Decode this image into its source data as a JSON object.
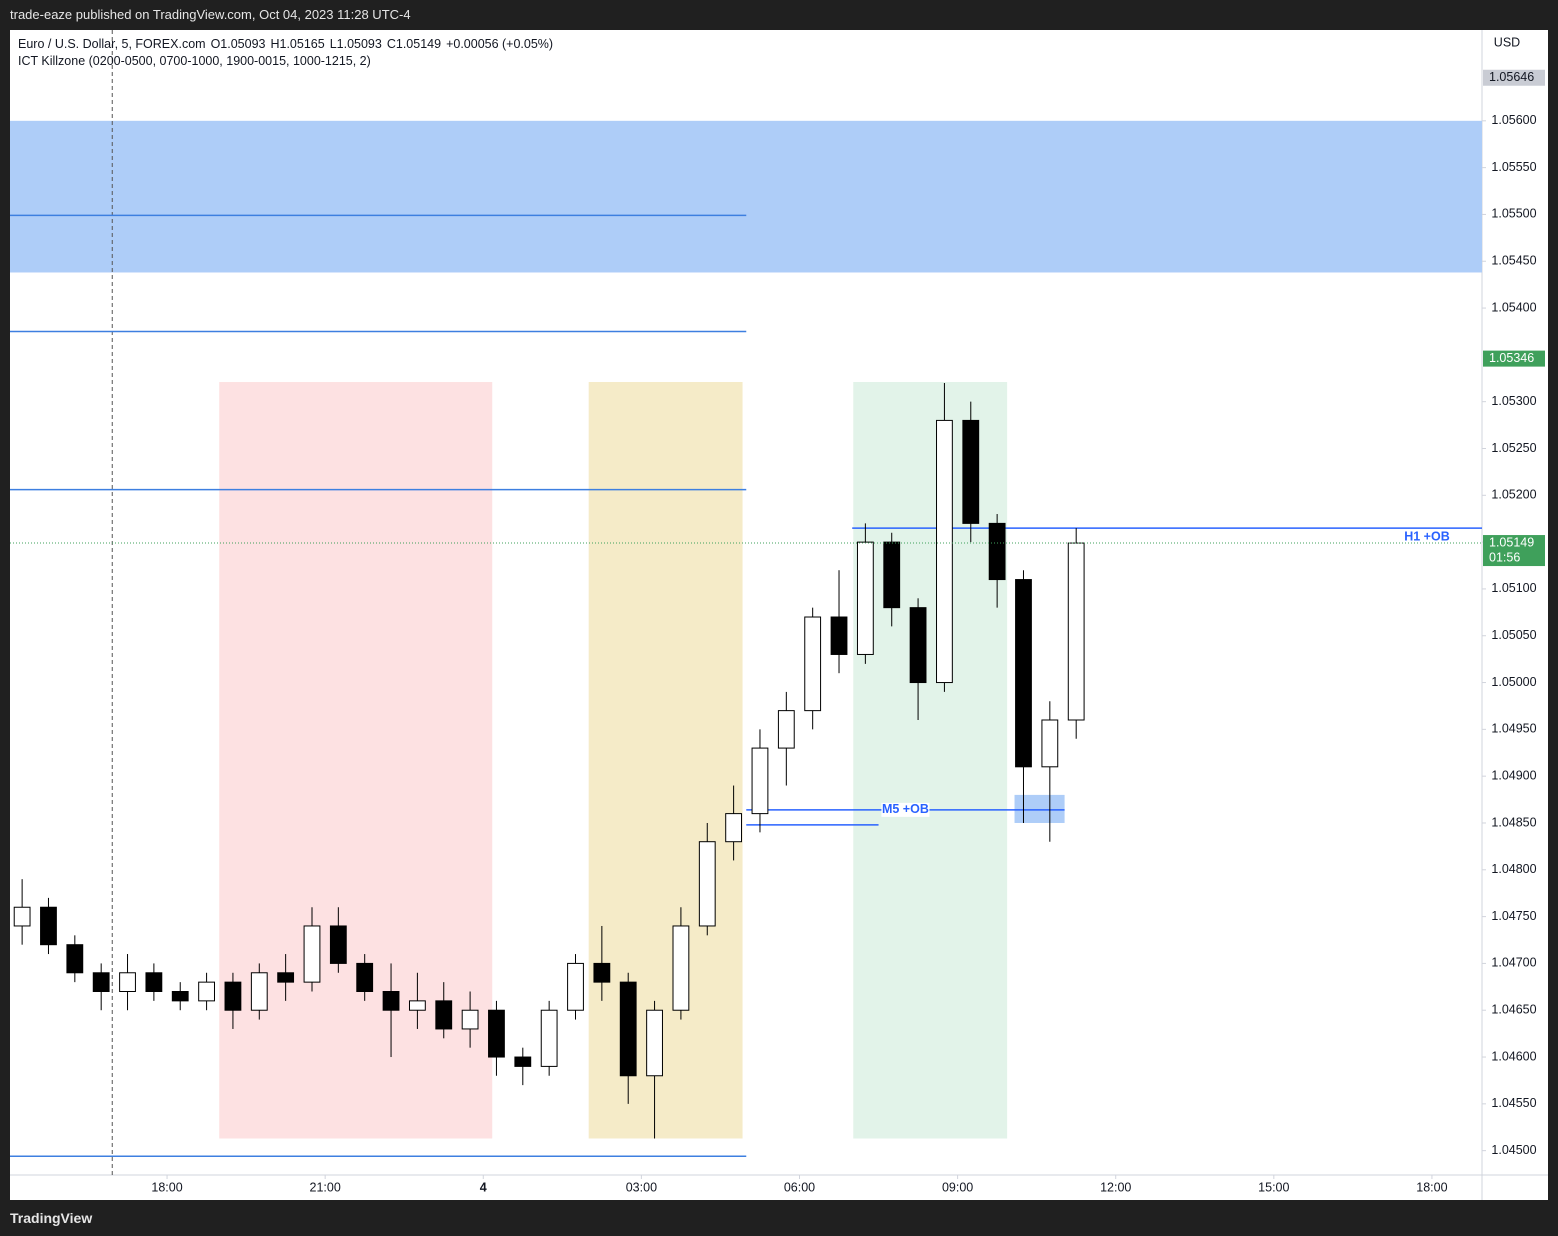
{
  "page": {
    "publisher": "trade-eaze published on TradingView.com, Oct 04, 2023 11:28 UTC-4",
    "brand": "TradingView"
  },
  "chart_data": {
    "type": "candlestick",
    "title": "Euro / U.S. Dollar, 5, FOREX.com",
    "ohlc_header": [
      "O1.05093",
      "H1.05165",
      "L1.05093",
      "C1.05149",
      "+0.00056 (+0.05%)"
    ],
    "indicator": "ICT Killzone (0200-0500, 0700-1000, 1900-0015, 1000-1215, 2)",
    "currency": "USD",
    "x": [
      15.25,
      15.75,
      16.25,
      16.75,
      17.25,
      17.75,
      18.25,
      18.75,
      19.25,
      19.75,
      20.25,
      20.75,
      21.25,
      21.75,
      22.25,
      22.75,
      23.25,
      23.75,
      24.25,
      24.75,
      25.25,
      25.75,
      26.25,
      26.75,
      27.25,
      27.75,
      28.25,
      28.75,
      29.25,
      29.75,
      30.25,
      30.75,
      31.25,
      31.75,
      32.25,
      32.75,
      33.25,
      33.75,
      34.25,
      34.75,
      35.25
    ],
    "open": [
      1.0474,
      1.0476,
      1.0472,
      1.0469,
      1.0467,
      1.0469,
      1.0467,
      1.0466,
      1.0468,
      1.0465,
      1.0469,
      1.0468,
      1.0474,
      1.047,
      1.0467,
      1.0465,
      1.0466,
      1.0463,
      1.0465,
      1.046,
      1.0459,
      1.0465,
      1.047,
      1.0468,
      1.0458,
      1.0465,
      1.0474,
      1.0483,
      1.0486,
      1.0493,
      1.0497,
      1.0507,
      1.0503,
      1.0515,
      1.0508,
      1.05,
      1.0528,
      1.0517,
      1.0511,
      1.0491,
      1.0496
    ],
    "high": [
      1.0479,
      1.0477,
      1.0473,
      1.047,
      1.0471,
      1.047,
      1.0468,
      1.0469,
      1.0469,
      1.047,
      1.0471,
      1.0476,
      1.0476,
      1.0471,
      1.047,
      1.0469,
      1.0468,
      1.0467,
      1.0466,
      1.0461,
      1.0466,
      1.0471,
      1.0474,
      1.0469,
      1.0466,
      1.0476,
      1.0485,
      1.0489,
      1.0495,
      1.0499,
      1.0508,
      1.0512,
      1.0517,
      1.0516,
      1.0509,
      1.0532,
      1.053,
      1.0518,
      1.0512,
      1.0498,
      1.05165
    ],
    "low": [
      1.0472,
      1.0471,
      1.0468,
      1.0465,
      1.0465,
      1.0466,
      1.0465,
      1.0465,
      1.0463,
      1.0464,
      1.0466,
      1.0467,
      1.0469,
      1.0466,
      1.046,
      1.0463,
      1.0462,
      1.0461,
      1.0458,
      1.0457,
      1.0458,
      1.0464,
      1.0466,
      1.0455,
      1.04513,
      1.0464,
      1.0473,
      1.0481,
      1.0484,
      1.0489,
      1.0495,
      1.0501,
      1.0502,
      1.0506,
      1.0496,
      1.0499,
      1.0515,
      1.0508,
      1.0485,
      1.0483,
      1.0494
    ],
    "close": [
      1.0476,
      1.0472,
      1.0469,
      1.0467,
      1.0469,
      1.0467,
      1.0466,
      1.0468,
      1.0465,
      1.0469,
      1.0468,
      1.0474,
      1.047,
      1.0467,
      1.0465,
      1.0466,
      1.0463,
      1.0465,
      1.046,
      1.0459,
      1.0465,
      1.047,
      1.0468,
      1.0458,
      1.0465,
      1.0474,
      1.0483,
      1.0486,
      1.0493,
      1.0497,
      1.0507,
      1.0503,
      1.0515,
      1.0508,
      1.05,
      1.0528,
      1.0517,
      1.0511,
      1.0491,
      1.0496,
      1.05149
    ],
    "up_color": "#ffffff",
    "down_color": "#000000",
    "wick_color": "#000000",
    "xlim": [
      15.02,
      42.95
    ],
    "ylim": [
      1.04474,
      1.05697
    ],
    "xticks": [
      {
        "value": 18,
        "label": "18:00"
      },
      {
        "value": 21,
        "label": "21:00"
      },
      {
        "value": 24,
        "label": "4"
      },
      {
        "value": 27,
        "label": "03:00"
      },
      {
        "value": 30,
        "label": "06:00"
      },
      {
        "value": 33,
        "label": "09:00"
      },
      {
        "value": 36,
        "label": "12:00"
      },
      {
        "value": 39,
        "label": "15:00"
      },
      {
        "value": 42,
        "label": "18:00"
      }
    ],
    "yticks": [
      {
        "value": 1.045,
        "label": "1.04500"
      },
      {
        "value": 1.0455,
        "label": "1.04550"
      },
      {
        "value": 1.046,
        "label": "1.04600"
      },
      {
        "value": 1.0465,
        "label": "1.04650"
      },
      {
        "value": 1.047,
        "label": "1.04700"
      },
      {
        "value": 1.0475,
        "label": "1.04750"
      },
      {
        "value": 1.048,
        "label": "1.04800"
      },
      {
        "value": 1.0485,
        "label": "1.04850"
      },
      {
        "value": 1.049,
        "label": "1.04900"
      },
      {
        "value": 1.0495,
        "label": "1.04950"
      },
      {
        "value": 1.05,
        "label": "1.05000"
      },
      {
        "value": 1.0505,
        "label": "1.05050"
      },
      {
        "value": 1.051,
        "label": "1.05100"
      },
      {
        "value": 1.0515,
        "label": "1.05150"
      },
      {
        "value": 1.052,
        "label": "1.05200"
      },
      {
        "value": 1.0525,
        "label": "1.05250"
      },
      {
        "value": 1.053,
        "label": "1.05300"
      },
      {
        "value": 1.054,
        "label": "1.05400"
      },
      {
        "value": 1.0545,
        "label": "1.05450"
      },
      {
        "value": 1.055,
        "label": "1.05500"
      },
      {
        "value": 1.0555,
        "label": "1.05550"
      },
      {
        "value": 1.056,
        "label": "1.05600"
      }
    ],
    "zones": [
      {
        "x": [
          15.02,
          42.95
        ],
        "y": [
          1.05438,
          1.056
        ],
        "color": "#aecdf8"
      },
      {
        "x": [
          18.99,
          24.17
        ],
        "y": [
          1.04513,
          1.05321
        ],
        "color": "#fde1e2"
      },
      {
        "x": [
          26.0,
          28.92
        ],
        "y": [
          1.04513,
          1.05321
        ],
        "color": "#f5ebc8"
      },
      {
        "x": [
          31.02,
          33.94
        ],
        "y": [
          1.04513,
          1.05321
        ],
        "color": "#e2f3e9"
      },
      {
        "x": [
          34.08,
          35.03
        ],
        "y": [
          1.0485,
          1.0488
        ],
        "color": "#aecdf8"
      }
    ],
    "levels": [
      {
        "value": 1.05499,
        "x": [
          15.02,
          28.99
        ],
        "color": "#3d7fe0"
      },
      {
        "value": 1.05375,
        "x": [
          15.02,
          28.99
        ],
        "color": "#3d7fe0"
      },
      {
        "value": 1.05206,
        "x": [
          15.02,
          28.99
        ],
        "color": "#3d7fe0"
      },
      {
        "value": 1.04494,
        "x": [
          15.02,
          28.99
        ],
        "color": "#3d7fe0"
      },
      {
        "value": 1.05165,
        "x": [
          31.0,
          42.95
        ],
        "color": "#2962ff",
        "label": "H1 +OB"
      },
      {
        "value": 1.04864,
        "x": [
          28.99,
          35.03
        ],
        "color": "#2962ff",
        "label": "M5 +OB"
      },
      {
        "value": 1.04848,
        "x": [
          28.99,
          31.5
        ],
        "color": "#2962ff"
      }
    ],
    "session_marker_x": 16.96,
    "price_tags": [
      {
        "value": 1.05646,
        "label": "1.05646",
        "color": "#c9ccd4",
        "text_color": "#131722"
      },
      {
        "value": 1.05346,
        "label": "1.05346",
        "color": "#3fa05b",
        "text_color": "#ffffff"
      },
      {
        "value": 1.05149,
        "label": "1.05149",
        "color": "#3fa05b",
        "text_color": "#ffffff",
        "countdown": "01:56"
      }
    ]
  }
}
